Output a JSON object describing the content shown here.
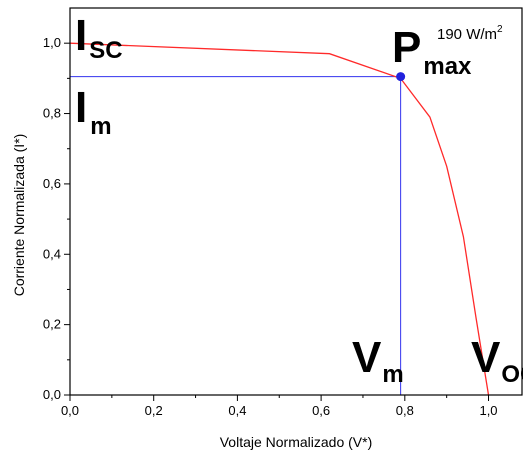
{
  "chart_data": {
    "type": "line",
    "xlabel": "Voltaje Normalizado (V*)",
    "ylabel": "Corriente Normalizada (I*)",
    "xlim": [
      0,
      1.08
    ],
    "ylim": [
      0,
      1.1
    ],
    "x_ticks": [
      0,
      0.2,
      0.4,
      0.6,
      0.8,
      1.0
    ],
    "y_ticks": [
      0,
      0.2,
      0.4,
      0.6,
      0.8,
      1.0
    ],
    "x_tick_labels": [
      "0,0",
      "0,2",
      "0,4",
      "0,6",
      "0,8",
      "1,0"
    ],
    "y_tick_labels": [
      "0,0",
      "0,2",
      "0,4",
      "0,6",
      "0,8",
      "1,0"
    ],
    "grid": false,
    "series": [
      {
        "color": "#ff2a2a",
        "x": [
          0.0,
          0.62,
          0.79,
          0.86,
          0.9,
          0.94,
          0.97,
          1.0
        ],
        "y": [
          1.0,
          0.97,
          0.9,
          0.79,
          0.65,
          0.45,
          0.22,
          0.0
        ]
      }
    ],
    "reference_lines": {
      "color": "#3333ee",
      "y": 0.905,
      "x": 0.79
    },
    "max_power_point": {
      "x": 0.79,
      "y": 0.905,
      "color": "#2222dd"
    },
    "annotations": {
      "isc": {
        "main": "I",
        "sub": "SC"
      },
      "im": {
        "main": "I",
        "sub": "m"
      },
      "pmax": {
        "main": "P",
        "sub": "max"
      },
      "vm": {
        "main": "V",
        "sub": "m"
      },
      "voc": {
        "main": "V",
        "sub": "OC"
      },
      "irradiance": {
        "text": "190 W/m",
        "sup": "2"
      }
    }
  }
}
